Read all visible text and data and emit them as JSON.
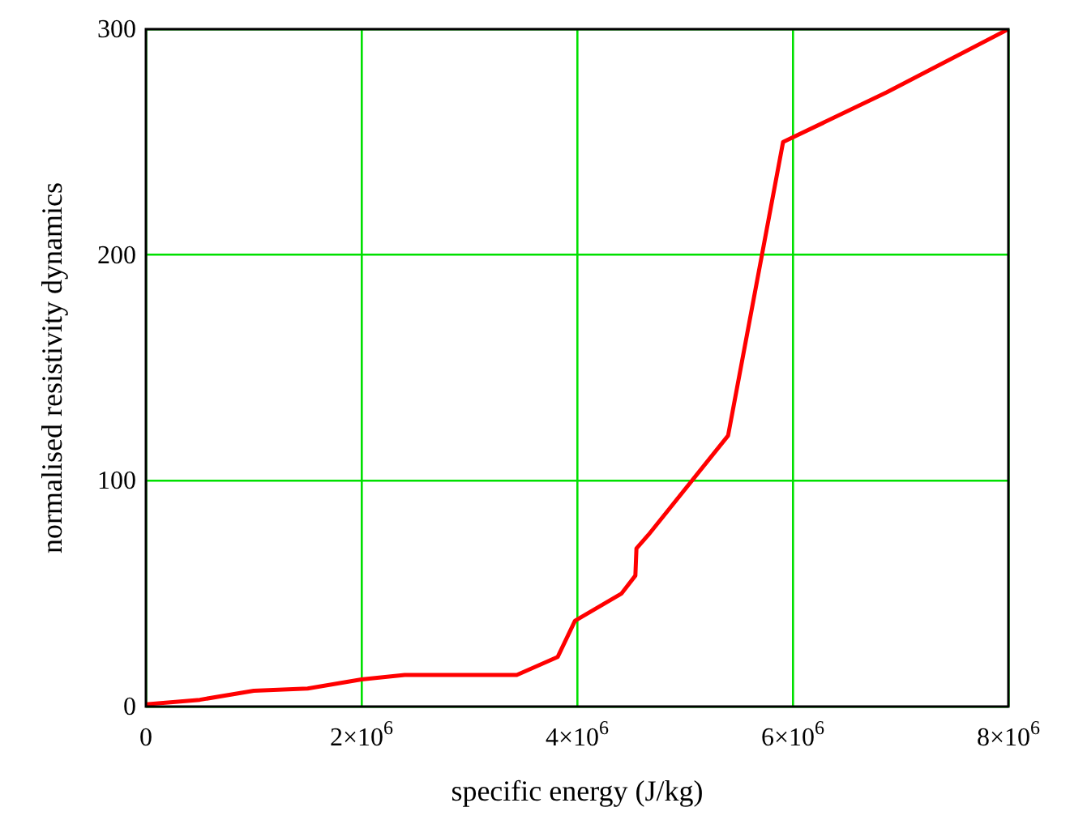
{
  "chart_data": {
    "type": "line",
    "xlabel": "specific energy (J/kg)",
    "ylabel": "normalised resistivity dynamics",
    "x": [
      0,
      500000,
      1000000,
      1500000,
      2000000,
      2400000,
      3440000,
      3820000,
      3980000,
      4410000,
      4540000,
      4550000,
      4660000,
      5400000,
      5910000,
      6870000,
      8000000
    ],
    "series": [
      {
        "color": "#ff0000",
        "values": [
          1,
          3,
          7,
          8,
          12,
          14,
          14,
          22,
          38,
          50,
          58,
          70,
          76,
          120,
          250,
          272,
          300
        ]
      }
    ],
    "xlim": [
      0,
      8000000
    ],
    "ylim": [
      0,
      300
    ],
    "xticks": [
      0,
      {
        "value": 2000000,
        "label": "2×10$^{6}$"
      },
      {
        "value": 4000000,
        "label": "4×10$^{6}$"
      },
      {
        "value": 6000000,
        "label": "6×10$^{6}$"
      },
      {
        "value": 8000000,
        "label": "8×10$^{6}$"
      }
    ],
    "yticks": [
      0,
      100,
      200,
      300
    ],
    "grid": true,
    "legend": false,
    "marker": "none",
    "line_style": "solid"
  }
}
